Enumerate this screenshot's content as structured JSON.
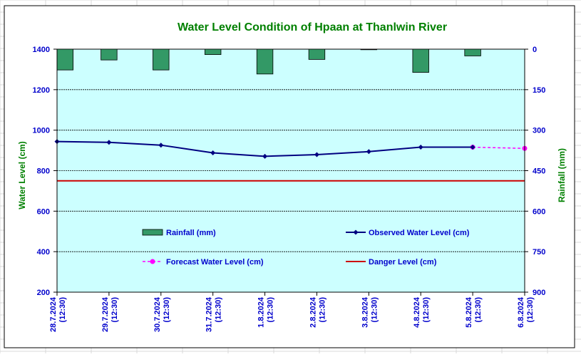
{
  "chart_data": {
    "type": "line",
    "title": "Water Level Condition of Hpaan at Thanlwin River",
    "ylabel": "Water Level (cm)",
    "y2label": "Rainfall (mm)",
    "ylim": [
      200,
      1400
    ],
    "y2lim": [
      0,
      900
    ],
    "yticks": [
      "200",
      "400",
      "600",
      "800",
      "1000",
      "1200",
      "1400"
    ],
    "y2ticks": [
      "0",
      "150",
      "300",
      "450",
      "600",
      "750",
      "900"
    ],
    "y2_inverted": true,
    "grid": true,
    "categories": [
      [
        "28.7.2024",
        "(12:30)"
      ],
      [
        "29.7.2024",
        "(12:30)"
      ],
      [
        "30.7.2024",
        "(12:30)"
      ],
      [
        "31.7.2024",
        "(12:30)"
      ],
      [
        "1.8.2024",
        "(12:30)"
      ],
      [
        "2.8.2024",
        "(12:30)"
      ],
      [
        "3.8.2024",
        "(12:30)"
      ],
      [
        "4.8.2024",
        "(12:30)"
      ],
      [
        "5.8.2024",
        "(12:30)"
      ],
      [
        "6.8.2024",
        "(12:30)"
      ]
    ],
    "series": [
      {
        "name": "Rainfall (mm)",
        "type": "bar",
        "axis": "right",
        "color": "#339966",
        "values": [
          77,
          40,
          77,
          20,
          92,
          38,
          2,
          86,
          25,
          null
        ]
      },
      {
        "name": "Observed Water Level (cm)",
        "type": "line",
        "axis": "left",
        "color": "#000080",
        "values": [
          944,
          940,
          926,
          888,
          871,
          879,
          894,
          916,
          916,
          null
        ]
      },
      {
        "name": "Forecast Water Level (cm)",
        "type": "line",
        "axis": "left",
        "dashed": true,
        "color": "#ff00ff",
        "values": [
          null,
          null,
          null,
          null,
          null,
          null,
          null,
          null,
          916,
          910
        ]
      },
      {
        "name": "Danger Level (cm)",
        "type": "line",
        "axis": "left",
        "color": "#cc0000",
        "values": [
          750,
          750,
          750,
          750,
          750,
          750,
          750,
          750,
          750,
          750
        ]
      }
    ],
    "colors": {
      "plot_bg": "#ccffff",
      "title": "#008000",
      "axis_label": "#008000",
      "tick_label": "#0000cc",
      "legend_text": "#0000cc"
    }
  }
}
